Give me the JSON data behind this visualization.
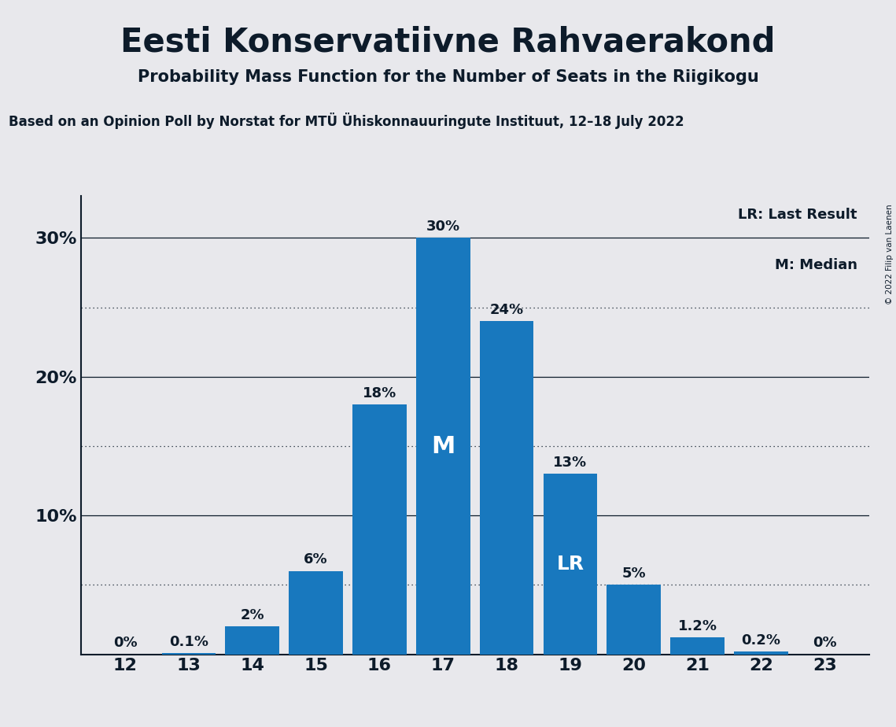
{
  "title": "Eesti Konservatiivne Rahvaerakond",
  "subtitle": "Probability Mass Function for the Number of Seats in the Riigikogu",
  "source": "Based on an Opinion Poll by Norstat for MTÜ Ühiskonnauuringute Instituut, 12–18 July 2022",
  "copyright": "© 2022 Filip van Laenen",
  "seats": [
    12,
    13,
    14,
    15,
    16,
    17,
    18,
    19,
    20,
    21,
    22,
    23
  ],
  "probabilities": [
    0.0,
    0.001,
    0.02,
    0.06,
    0.18,
    0.3,
    0.24,
    0.13,
    0.05,
    0.012,
    0.002,
    0.0
  ],
  "labels": [
    "0%",
    "0.1%",
    "2%",
    "6%",
    "18%",
    "30%",
    "24%",
    "13%",
    "5%",
    "1.2%",
    "0.2%",
    "0%"
  ],
  "bar_color": "#1878be",
  "background_color": "#e8e8ec",
  "text_color": "#0d1b2a",
  "median_seat": 17,
  "lr_seat": 19,
  "ylim": [
    0,
    0.33
  ],
  "yticks": [
    0.0,
    0.1,
    0.2,
    0.3
  ],
  "ytick_labels": [
    "",
    "10%",
    "20%",
    "30%"
  ],
  "dotted_lines": [
    0.05,
    0.15,
    0.25
  ],
  "solid_lines": [
    0.1,
    0.2,
    0.3
  ]
}
